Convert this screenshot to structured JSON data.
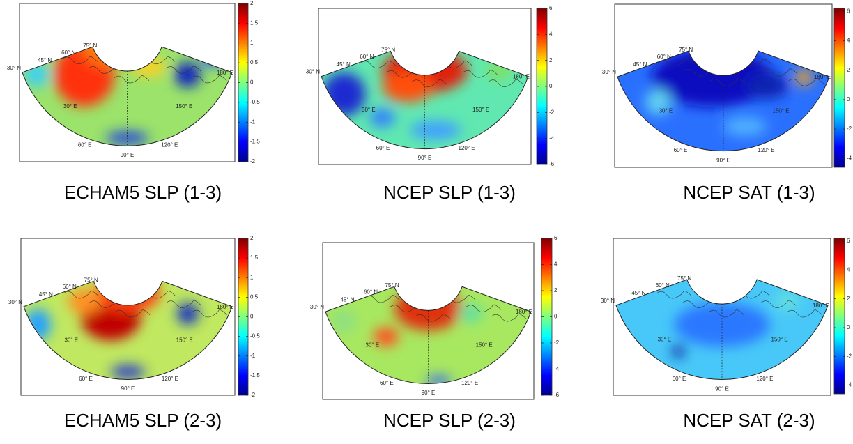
{
  "map_labels": {
    "lat": [
      "30° N",
      "45° N",
      "60° N",
      "75° N"
    ],
    "lon": [
      "30° E",
      "60° E",
      "90° E",
      "120° E",
      "150° E",
      "180° E"
    ]
  },
  "panels": [
    {
      "caption": "ECHAM5 SLP (1-3)",
      "colorbar": {
        "lim": [
          -2,
          2
        ],
        "ticks": [
          -2,
          -1.5,
          -1,
          -0.5,
          0,
          0.5,
          1,
          1.5,
          2
        ]
      }
    },
    {
      "caption": "NCEP SLP (1-3)",
      "colorbar": {
        "lim": [
          -6,
          6
        ],
        "ticks": [
          -6,
          -4,
          -2,
          0,
          2,
          4,
          6
        ]
      }
    },
    {
      "caption": "NCEP SAT (1-3)",
      "colorbar": {
        "lim": [
          -4.6,
          6.2
        ],
        "ticks": [
          -4,
          -2,
          0,
          2,
          4,
          6
        ]
      }
    },
    {
      "caption": "ECHAM5 SLP (2-3)",
      "colorbar": {
        "lim": [
          -2,
          2
        ],
        "ticks": [
          -2,
          -1.5,
          -1,
          -0.5,
          0,
          0.5,
          1,
          1.5,
          2
        ]
      }
    },
    {
      "caption": "NCEP SLP (2-3)",
      "colorbar": {
        "lim": [
          -6,
          6
        ],
        "ticks": [
          -6,
          -4,
          -2,
          0,
          2,
          4,
          6
        ]
      }
    },
    {
      "caption": "NCEP SAT (2-3)",
      "colorbar": {
        "lim": [
          -4.6,
          6.2
        ],
        "ticks": [
          -4,
          -2,
          0,
          2,
          4,
          6
        ]
      }
    }
  ]
}
